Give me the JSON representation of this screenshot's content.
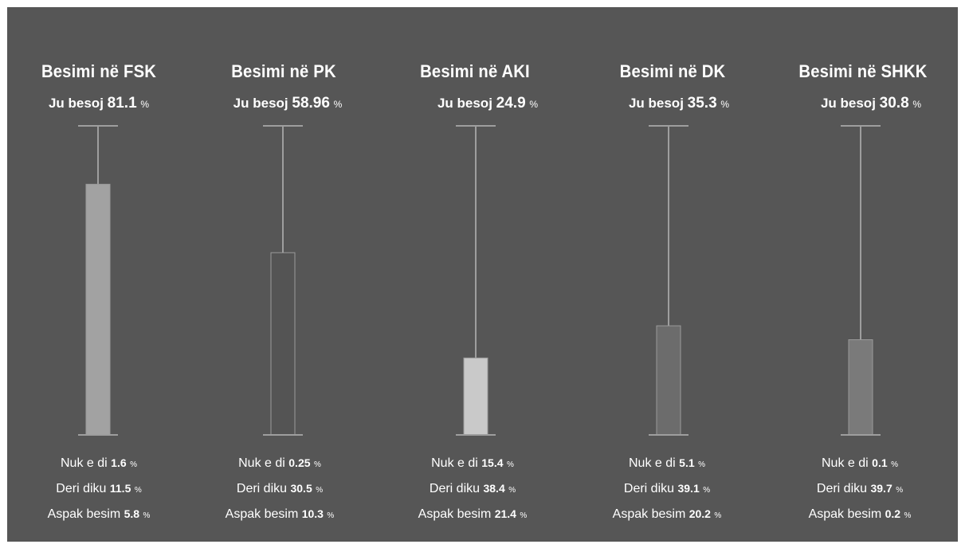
{
  "chart_data": {
    "type": "bar",
    "ylim": [
      0,
      100
    ],
    "colors": [
      "#a2a2a2",
      "#545454",
      "#c9c9c9",
      "#6c6c6c",
      "#7a7a7a"
    ],
    "bar_color_outline": "#9a9a9a",
    "panels": [
      {
        "title": "Besimi në FSK",
        "trust_label": "Ju besoj",
        "trust_value": "81.1",
        "trust_unit": "%",
        "value": 81.1,
        "stats": [
          {
            "label": "Nuk e di",
            "value": "1.6",
            "unit": "%"
          },
          {
            "label": "Deri diku",
            "value": "11.5",
            "unit": "%"
          },
          {
            "label": "Aspak besim",
            "value": "5.8",
            "unit": "%"
          }
        ]
      },
      {
        "title": "Besimi në PK",
        "trust_label": "Ju besoj",
        "trust_value": "58.96",
        "trust_unit": "%",
        "value": 58.96,
        "stats": [
          {
            "label": "Nuk e di",
            "value": "0.25",
            "unit": "%"
          },
          {
            "label": "Deri diku",
            "value": "30.5",
            "unit": "%"
          },
          {
            "label": "Aspak besim",
            "value": "10.3",
            "unit": "%"
          }
        ]
      },
      {
        "title": "Besimi në AKI",
        "trust_label": "Ju besoj",
        "trust_value": "24.9",
        "trust_unit": "%",
        "value": 24.9,
        "stats": [
          {
            "label": "Nuk e di",
            "value": "15.4",
            "unit": "%"
          },
          {
            "label": "Deri diku",
            "value": "38.4",
            "unit": "%"
          },
          {
            "label": "Aspak besim",
            "value": "21.4",
            "unit": "%"
          }
        ]
      },
      {
        "title": "Besimi në DK",
        "trust_label": "Ju besoj",
        "trust_value": "35.3",
        "trust_unit": "%",
        "value": 35.3,
        "stats": [
          {
            "label": "Nuk e di",
            "value": "5.1",
            "unit": "%"
          },
          {
            "label": "Deri diku",
            "value": "39.1",
            "unit": "%"
          },
          {
            "label": "Aspak besim",
            "value": "20.2",
            "unit": "%"
          }
        ]
      },
      {
        "title": "Besimi në SHKK",
        "trust_label": "Ju besoj",
        "trust_value": "30.8",
        "trust_unit": "%",
        "value": 30.8,
        "stats": [
          {
            "label": "Nuk e di",
            "value": "0.1",
            "unit": "%"
          },
          {
            "label": "Deri diku",
            "value": "39.7",
            "unit": "%"
          },
          {
            "label": "Aspak besim",
            "value": "0.2",
            "unit": "%"
          }
        ]
      }
    ]
  }
}
